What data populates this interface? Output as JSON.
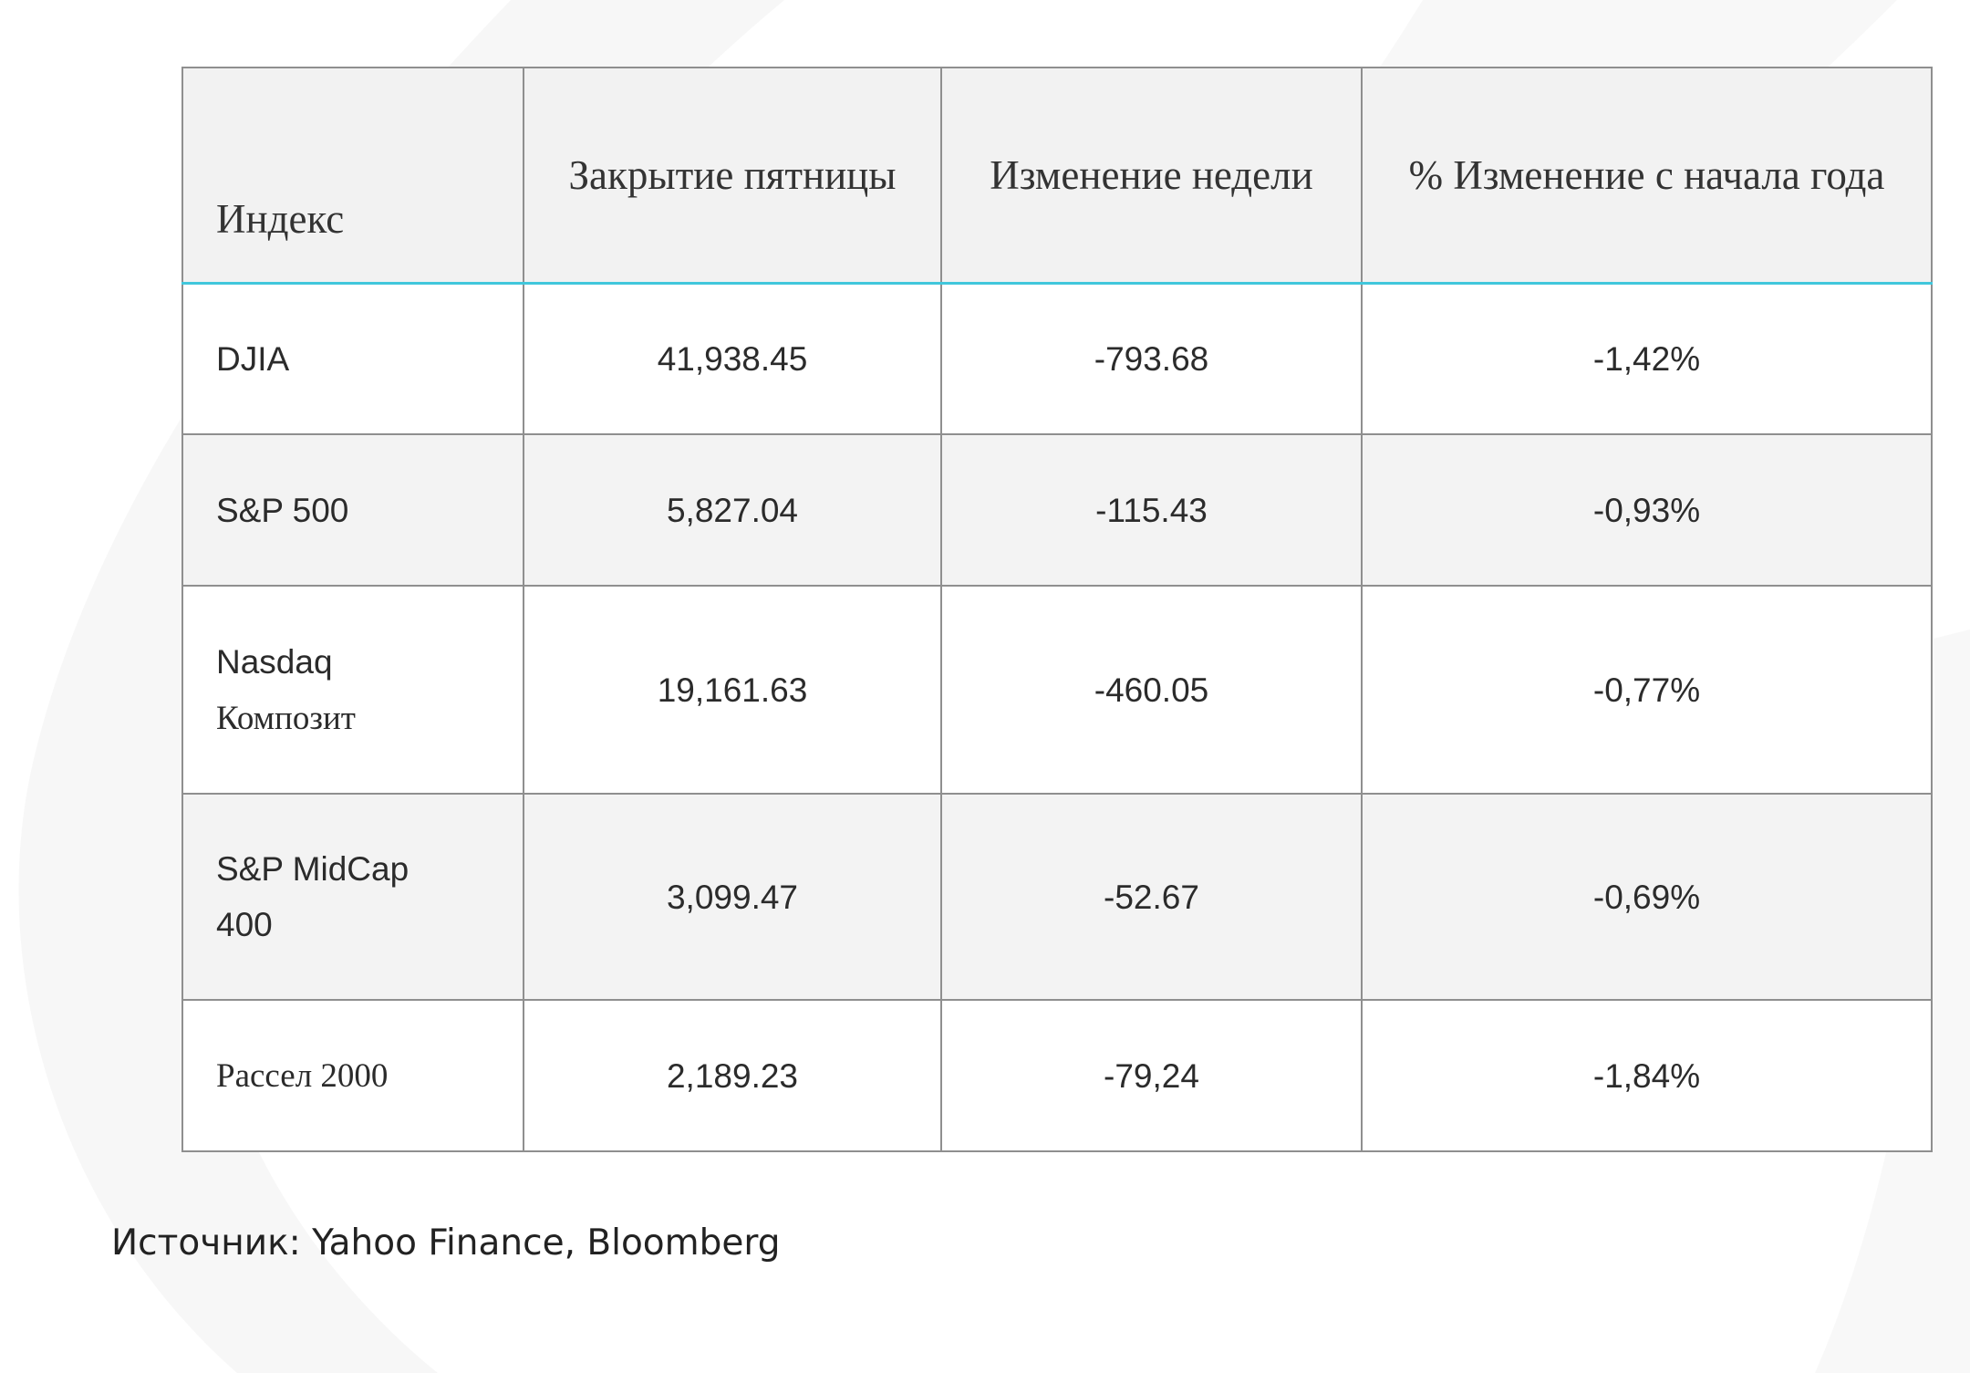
{
  "table": {
    "headers": [
      "Индекс",
      "Закрытие пятницы",
      "Изменение недели",
      "% Изменение с начала года"
    ],
    "rows": [
      {
        "index_line1": "DJIA",
        "index_line2": "",
        "close": "41,938.45",
        "week_change": "-793.68",
        "ytd_change": "-1,42%"
      },
      {
        "index_line1": "S&P 500",
        "index_line2": "",
        "close": "5,827.04",
        "week_change": "-115.43",
        "ytd_change": "-0,93%"
      },
      {
        "index_line1": "Nasdaq",
        "index_line2": "Композит",
        "close": "19,161.63",
        "week_change": "-460.05",
        "ytd_change": "-0,77%"
      },
      {
        "index_line1": "S&P MidCap",
        "index_line2": "400",
        "close": "3,099.47",
        "week_change": "-52.67",
        "ytd_change": "-0,69%"
      },
      {
        "index_line1": "Рассел 2000",
        "index_line2": "",
        "close": "2,189.23",
        "week_change": "-79,24",
        "ytd_change": "-1,84%"
      }
    ]
  },
  "source": "Источник: Yahoo Finance, Bloomberg",
  "colors": {
    "header_bg": "#f2f2f2",
    "header_accent": "#41c7dc",
    "border": "#8f8f8f",
    "stripe": "#f3f3f3",
    "decor": "#f7f7f7"
  }
}
